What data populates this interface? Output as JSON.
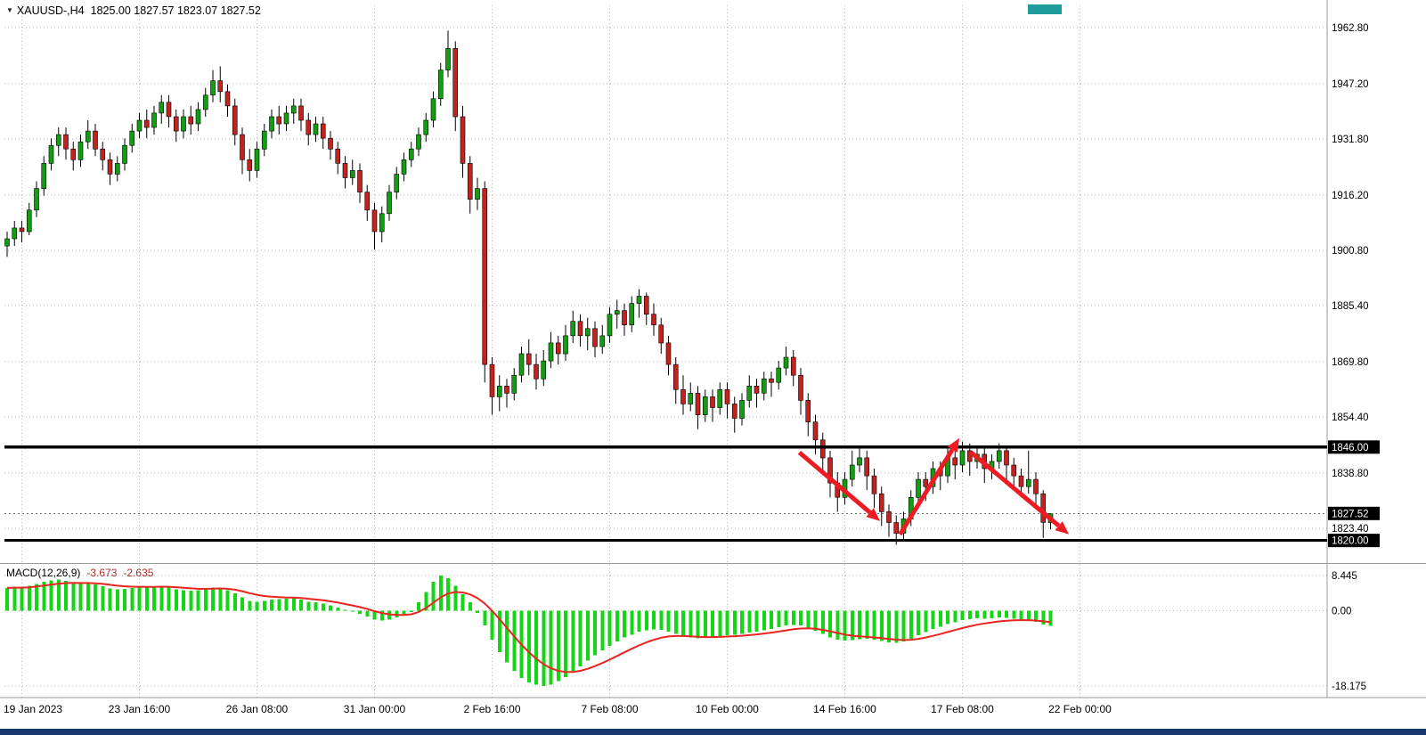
{
  "header": {
    "menu_icon": "▼",
    "symbol_timeframe": "XAUUSD-,H4",
    "ohlc_text": "1825.00 1827.57 1823.07 1827.52"
  },
  "indicator": {
    "label": "MACD(12,26,9)",
    "macd_value": "-3.673",
    "signal_value": "-2.635"
  },
  "colors": {
    "background": "#ffffff",
    "bull": "#119f11",
    "bear": "#c4221e",
    "histogram": "#15d615",
    "signal": "#e8251f",
    "arrow": "#ed1c24",
    "level_line": "#000000",
    "grid": "#b4b4b4",
    "axis_text": "#000000",
    "separator": "#9a9a9a",
    "label_box_bg": "#000000",
    "label_box_text": "#ffffff",
    "current_price_line": "#666666"
  },
  "chart_data": {
    "type": "candlestick",
    "symbol": "XAUUSD-",
    "timeframe": "H4",
    "title": "XAUUSD-,H4 1825.00 1827.57 1823.07 1827.52",
    "grid": "dotted",
    "legend_position": "none",
    "price_axis_range": [
      1814,
      1969
    ],
    "current_candle": {
      "open": 1825.0,
      "high": 1827.57,
      "low": 1823.07,
      "close": 1827.52
    },
    "price_axis_ticks": [
      "1962.80",
      "1947.20",
      "1931.80",
      "1916.20",
      "1900.80",
      "1885.40",
      "1869.80",
      "1854.40",
      "1838.80",
      "1823.40"
    ],
    "time_axis_ticks": [
      {
        "label": "19 Jan 2023",
        "index": 2
      },
      {
        "label": "23 Jan 16:00",
        "index": 18
      },
      {
        "label": "26 Jan 08:00",
        "index": 34
      },
      {
        "label": "31 Jan 00:00",
        "index": 50
      },
      {
        "label": "2 Feb 16:00",
        "index": 66
      },
      {
        "label": "7 Feb 08:00",
        "index": 82
      },
      {
        "label": "10 Feb 00:00",
        "index": 98
      },
      {
        "label": "14 Feb 16:00",
        "index": 114
      },
      {
        "label": "17 Feb 08:00",
        "index": 130
      },
      {
        "label": "22 Feb 00:00",
        "index": 146
      }
    ],
    "horizontal_levels": [
      {
        "price": 1846.0,
        "label": "1846.00"
      },
      {
        "price": 1820.0,
        "label": "1820.00"
      }
    ],
    "current_price_line": {
      "price": 1827.52,
      "label": "1827.52"
    },
    "candles_ohlc": [
      [
        1902,
        1906,
        1899,
        1904
      ],
      [
        1904,
        1909,
        1902,
        1907
      ],
      [
        1907,
        1909,
        1903,
        1906
      ],
      [
        1906,
        1914,
        1905,
        1912
      ],
      [
        1912,
        1920,
        1910,
        1918
      ],
      [
        1918,
        1927,
        1916,
        1925
      ],
      [
        1925,
        1932,
        1923,
        1930
      ],
      [
        1930,
        1935,
        1927,
        1933
      ],
      [
        1933,
        1935,
        1926,
        1929
      ],
      [
        1929,
        1931,
        1923,
        1926
      ],
      [
        1926,
        1933,
        1924,
        1931
      ],
      [
        1931,
        1937,
        1929,
        1934
      ],
      [
        1934,
        1936,
        1927,
        1929
      ],
      [
        1929,
        1931,
        1923,
        1926
      ],
      [
        1926,
        1928,
        1919,
        1922
      ],
      [
        1922,
        1927,
        1920,
        1925
      ],
      [
        1925,
        1932,
        1923,
        1930
      ],
      [
        1930,
        1936,
        1928,
        1934
      ],
      [
        1934,
        1939,
        1932,
        1937
      ],
      [
        1937,
        1940,
        1932,
        1935
      ],
      [
        1935,
        1941,
        1933,
        1939
      ],
      [
        1939,
        1944,
        1936,
        1942
      ],
      [
        1942,
        1944,
        1935,
        1938
      ],
      [
        1938,
        1940,
        1931,
        1934
      ],
      [
        1934,
        1940,
        1932,
        1938
      ],
      [
        1938,
        1941,
        1933,
        1936
      ],
      [
        1936,
        1942,
        1934,
        1940
      ],
      [
        1940,
        1946,
        1938,
        1944
      ],
      [
        1944,
        1951,
        1942,
        1948
      ],
      [
        1948,
        1952,
        1942,
        1945
      ],
      [
        1945,
        1947,
        1938,
        1941
      ],
      [
        1941,
        1943,
        1930,
        1933
      ],
      [
        1933,
        1935,
        1922,
        1926
      ],
      [
        1926,
        1929,
        1920,
        1923
      ],
      [
        1923,
        1931,
        1921,
        1929
      ],
      [
        1929,
        1936,
        1927,
        1934
      ],
      [
        1934,
        1940,
        1932,
        1938
      ],
      [
        1938,
        1941,
        1933,
        1936
      ],
      [
        1936,
        1941,
        1934,
        1939
      ],
      [
        1939,
        1943,
        1936,
        1941
      ],
      [
        1941,
        1943,
        1934,
        1937
      ],
      [
        1937,
        1939,
        1930,
        1933
      ],
      [
        1933,
        1938,
        1931,
        1936
      ],
      [
        1936,
        1938,
        1929,
        1932
      ],
      [
        1932,
        1934,
        1926,
        1929
      ],
      [
        1929,
        1931,
        1922,
        1925
      ],
      [
        1925,
        1927,
        1918,
        1921
      ],
      [
        1921,
        1926,
        1919,
        1923
      ],
      [
        1923,
        1925,
        1914,
        1917
      ],
      [
        1917,
        1919,
        1909,
        1912
      ],
      [
        1912,
        1914,
        1901,
        1906
      ],
      [
        1906,
        1913,
        1903,
        1911
      ],
      [
        1911,
        1919,
        1909,
        1917
      ],
      [
        1917,
        1924,
        1915,
        1922
      ],
      [
        1922,
        1928,
        1920,
        1926
      ],
      [
        1926,
        1931,
        1924,
        1929
      ],
      [
        1929,
        1935,
        1927,
        1933
      ],
      [
        1933,
        1939,
        1931,
        1937
      ],
      [
        1937,
        1945,
        1935,
        1943
      ],
      [
        1943,
        1953,
        1941,
        1951
      ],
      [
        1951,
        1962,
        1949,
        1957
      ],
      [
        1957,
        1959,
        1934,
        1938
      ],
      [
        1938,
        1941,
        1921,
        1925
      ],
      [
        1925,
        1927,
        1911,
        1915
      ],
      [
        1915,
        1921,
        1912,
        1918
      ],
      [
        1918,
        1920,
        1864,
        1869
      ],
      [
        1869,
        1871,
        1855,
        1860
      ],
      [
        1860,
        1866,
        1856,
        1863
      ],
      [
        1863,
        1865,
        1857,
        1861
      ],
      [
        1861,
        1868,
        1859,
        1866
      ],
      [
        1866,
        1874,
        1864,
        1872
      ],
      [
        1872,
        1876,
        1866,
        1869
      ],
      [
        1869,
        1872,
        1862,
        1865
      ],
      [
        1865,
        1873,
        1863,
        1870
      ],
      [
        1870,
        1878,
        1868,
        1875
      ],
      [
        1875,
        1877,
        1869,
        1872
      ],
      [
        1872,
        1880,
        1870,
        1877
      ],
      [
        1877,
        1884,
        1875,
        1881
      ],
      [
        1881,
        1883,
        1874,
        1877
      ],
      [
        1877,
        1882,
        1873,
        1879
      ],
      [
        1879,
        1881,
        1871,
        1874
      ],
      [
        1874,
        1880,
        1872,
        1877
      ],
      [
        1877,
        1885,
        1875,
        1883
      ],
      [
        1883,
        1887,
        1879,
        1884
      ],
      [
        1884,
        1886,
        1877,
        1880
      ],
      [
        1880,
        1888,
        1878,
        1886
      ],
      [
        1886,
        1890,
        1882,
        1888
      ],
      [
        1888,
        1889,
        1880,
        1883
      ],
      [
        1883,
        1886,
        1877,
        1880
      ],
      [
        1880,
        1882,
        1872,
        1875
      ],
      [
        1875,
        1877,
        1866,
        1869
      ],
      [
        1869,
        1871,
        1858,
        1862
      ],
      [
        1862,
        1866,
        1855,
        1858
      ],
      [
        1858,
        1864,
        1856,
        1861
      ],
      [
        1861,
        1863,
        1851,
        1855
      ],
      [
        1855,
        1862,
        1853,
        1860
      ],
      [
        1860,
        1862,
        1853,
        1857
      ],
      [
        1857,
        1864,
        1855,
        1862
      ],
      [
        1862,
        1864,
        1854,
        1858
      ],
      [
        1858,
        1860,
        1850,
        1854
      ],
      [
        1854,
        1861,
        1852,
        1859
      ],
      [
        1859,
        1866,
        1857,
        1863
      ],
      [
        1863,
        1865,
        1857,
        1861
      ],
      [
        1861,
        1867,
        1859,
        1865
      ],
      [
        1865,
        1867,
        1860,
        1864
      ],
      [
        1864,
        1870,
        1862,
        1868
      ],
      [
        1868,
        1874,
        1866,
        1871
      ],
      [
        1871,
        1873,
        1863,
        1866
      ],
      [
        1866,
        1868,
        1855,
        1859
      ],
      [
        1859,
        1861,
        1849,
        1853
      ],
      [
        1853,
        1855,
        1844,
        1848
      ],
      [
        1848,
        1850,
        1839,
        1843
      ],
      [
        1843,
        1845,
        1832,
        1836
      ],
      [
        1836,
        1839,
        1828,
        1832
      ],
      [
        1832,
        1839,
        1830,
        1837
      ],
      [
        1837,
        1845,
        1835,
        1841
      ],
      [
        1841,
        1846,
        1839,
        1843
      ],
      [
        1843,
        1845,
        1834,
        1838
      ],
      [
        1838,
        1840,
        1829,
        1833
      ],
      [
        1833,
        1835,
        1824,
        1828
      ],
      [
        1828,
        1830,
        1821,
        1825
      ],
      [
        1825,
        1827,
        1818.8,
        1822
      ],
      [
        1822,
        1828,
        1820,
        1826
      ],
      [
        1826,
        1834,
        1824,
        1832
      ],
      [
        1832,
        1839,
        1830,
        1837
      ],
      [
        1837,
        1839,
        1831,
        1835
      ],
      [
        1835,
        1842,
        1833,
        1840
      ],
      [
        1840,
        1842,
        1834,
        1838
      ],
      [
        1838,
        1846,
        1836,
        1843
      ],
      [
        1843,
        1845,
        1837,
        1841
      ],
      [
        1841,
        1847.5,
        1839,
        1845
      ],
      [
        1845,
        1847,
        1838,
        1842
      ],
      [
        1842,
        1846,
        1840,
        1844
      ],
      [
        1844,
        1846,
        1836,
        1840
      ],
      [
        1840,
        1844,
        1837,
        1842
      ],
      [
        1842,
        1847,
        1840,
        1845
      ],
      [
        1845,
        1846,
        1837,
        1841
      ],
      [
        1841,
        1843,
        1834,
        1838
      ],
      [
        1838,
        1840,
        1832,
        1835
      ],
      [
        1835,
        1845,
        1833,
        1837
      ],
      [
        1837,
        1839,
        1829,
        1833
      ],
      [
        1833,
        1834,
        1820.7,
        1825
      ],
      [
        1825,
        1827.57,
        1823.07,
        1827.52
      ]
    ],
    "macd": {
      "name": "MACD(12,26,9)",
      "signal_period": 9,
      "current_macd": -3.673,
      "current_signal": -2.635,
      "axis_ticks": [
        {
          "label": "8.445",
          "value": 8.445
        },
        {
          "label": "0.00",
          "value": 0
        },
        {
          "label": "-18.175",
          "value": -18.175
        }
      ],
      "histogram": [
        5.5,
        5.8,
        5.6,
        6.0,
        6.5,
        7.0,
        7.3,
        7.5,
        7.2,
        6.8,
        6.6,
        6.7,
        6.3,
        5.9,
        5.4,
        5.2,
        5.3,
        5.5,
        5.7,
        5.6,
        5.8,
        6.0,
        5.7,
        5.2,
        5.0,
        4.8,
        4.9,
        5.2,
        5.6,
        5.5,
        5.0,
        4.2,
        3.2,
        2.4,
        2.2,
        2.4,
        2.7,
        2.8,
        2.9,
        3.0,
        2.7,
        2.2,
        2.0,
        1.7,
        1.3,
        0.8,
        0.2,
        -0.1,
        -0.7,
        -1.4,
        -2.2,
        -2.4,
        -2.1,
        -1.6,
        -1.0,
        -0.3,
        2.0,
        4.5,
        7.0,
        8.445,
        7.8,
        6.0,
        4.0,
        2.0,
        -0.5,
        -3.5,
        -7.0,
        -10.0,
        -12.5,
        -14.5,
        -16.2,
        -17.3,
        -17.9,
        -18.175,
        -17.8,
        -17.0,
        -16.0,
        -14.8,
        -13.4,
        -12.0,
        -10.8,
        -9.6,
        -8.5,
        -7.4,
        -6.5,
        -5.8,
        -5.1,
        -4.7,
        -4.5,
        -4.6,
        -5.0,
        -5.6,
        -6.2,
        -6.5,
        -6.7,
        -6.6,
        -6.4,
        -6.1,
        -5.9,
        -5.8,
        -5.6,
        -5.3,
        -5.0,
        -4.7,
        -4.4,
        -4.0,
        -3.6,
        -3.4,
        -3.6,
        -4.1,
        -4.8,
        -5.6,
        -6.4,
        -7.0,
        -7.2,
        -7.1,
        -6.9,
        -6.8,
        -7.0,
        -7.3,
        -7.6,
        -7.7,
        -7.4,
        -6.8,
        -5.9,
        -5.2,
        -4.4,
        -3.9,
        -3.2,
        -2.8,
        -2.3,
        -2.0,
        -1.8,
        -1.9,
        -1.8,
        -1.6,
        -1.7,
        -1.9,
        -2.2,
        -2.3,
        -2.7,
        -3.3,
        -3.673
      ]
    },
    "arrows": [
      {
        "from": {
          "index": 107.8,
          "price": 1844.5
        },
        "to": {
          "index": 118.8,
          "price": 1825.4
        }
      },
      {
        "from": {
          "index": 121.5,
          "price": 1821.7
        },
        "to": {
          "index": 129.6,
          "price": 1848.5
        }
      },
      {
        "from": {
          "index": 131.2,
          "price": 1844.5
        },
        "to": {
          "index": 144.5,
          "price": 1821.7
        }
      }
    ]
  }
}
